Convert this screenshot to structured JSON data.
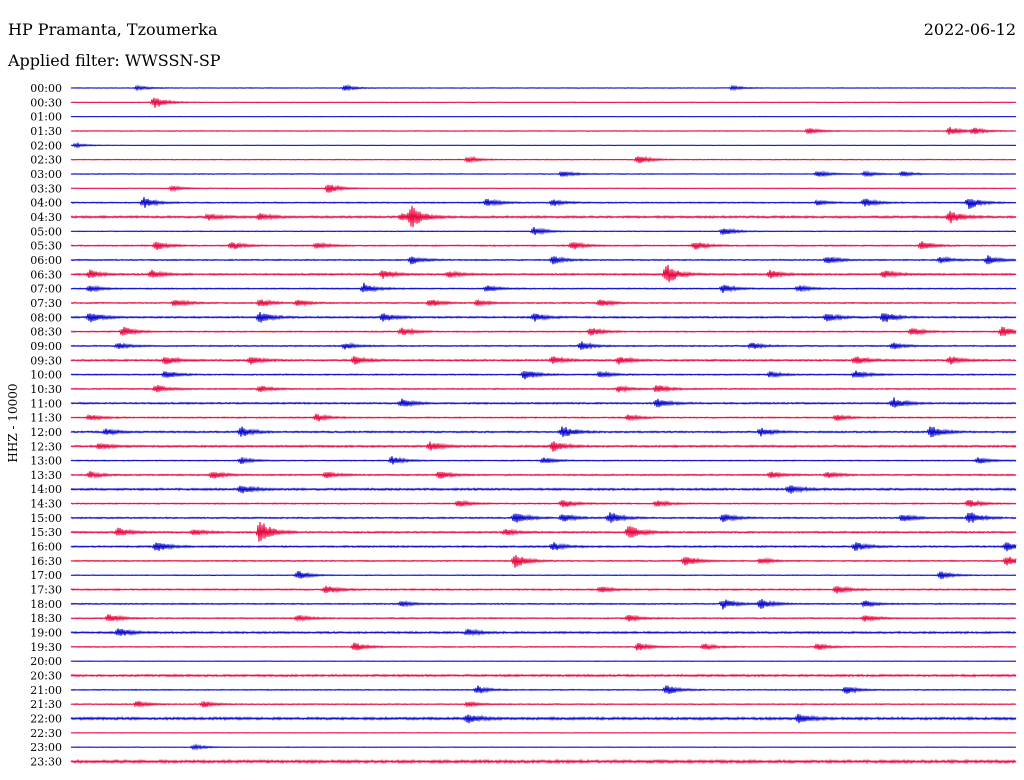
{
  "header": {
    "title": "HP Pramanta, Tzoumerka",
    "date": "2022-06-12",
    "filter": "Applied filter: WWSSN-SP"
  },
  "chart_data": {
    "type": "line",
    "title": "HP Pramanta, Tzoumerka",
    "subtitle": "Applied filter: WWSSN-SP",
    "date": "2022-06-12",
    "ylabel": "HHZ - 10000",
    "xlabel": "",
    "grid": false,
    "colors": {
      "even": "#0000cc",
      "odd": "#e8003a"
    },
    "rows": [
      {
        "label": "00:00",
        "noise": 0.3,
        "events": [
          [
            0.07,
            1
          ],
          [
            0.29,
            1.2
          ],
          [
            0.7,
            1
          ]
        ]
      },
      {
        "label": "00:30",
        "noise": 0.3,
        "events": [
          [
            0.088,
            3
          ]
        ]
      },
      {
        "label": "01:00",
        "noise": 0.2,
        "events": []
      },
      {
        "label": "01:30",
        "noise": 0.4,
        "events": [
          [
            0.78,
            1.5
          ],
          [
            0.93,
            2
          ],
          [
            0.955,
            1.5
          ]
        ]
      },
      {
        "label": "02:00",
        "noise": 0.2,
        "events": [
          [
            0.005,
            1
          ]
        ]
      },
      {
        "label": "02:30",
        "noise": 0.4,
        "events": [
          [
            0.42,
            1.5
          ],
          [
            0.6,
            2
          ]
        ]
      },
      {
        "label": "03:00",
        "noise": 0.4,
        "events": [
          [
            0.52,
            1.5
          ],
          [
            0.79,
            1.5
          ],
          [
            0.84,
            1.2
          ],
          [
            0.88,
            1.2
          ]
        ]
      },
      {
        "label": "03:30",
        "noise": 0.3,
        "events": [
          [
            0.107,
            1.2
          ],
          [
            0.272,
            2.5
          ]
        ]
      },
      {
        "label": "04:00",
        "noise": 0.6,
        "events": [
          [
            0.077,
            2.5
          ],
          [
            0.44,
            2
          ],
          [
            0.51,
            1.5
          ],
          [
            0.79,
            1.2
          ],
          [
            0.84,
            2
          ],
          [
            0.95,
            3
          ]
        ]
      },
      {
        "label": "04:30",
        "noise": 1.0,
        "events": [
          [
            0.36,
            5
          ],
          [
            0.35,
            2
          ],
          [
            0.145,
            1.5
          ],
          [
            0.2,
            1.5
          ],
          [
            0.93,
            3
          ]
        ]
      },
      {
        "label": "05:00",
        "noise": 0.4,
        "events": [
          [
            0.49,
            2
          ],
          [
            0.69,
            2
          ]
        ]
      },
      {
        "label": "05:30",
        "noise": 0.6,
        "events": [
          [
            0.09,
            2
          ],
          [
            0.17,
            2
          ],
          [
            0.26,
            1.5
          ],
          [
            0.53,
            2
          ],
          [
            0.66,
            2
          ],
          [
            0.9,
            2
          ]
        ]
      },
      {
        "label": "06:00",
        "noise": 0.6,
        "events": [
          [
            0.36,
            2
          ],
          [
            0.51,
            2
          ],
          [
            0.8,
            2
          ],
          [
            0.92,
            1.5
          ],
          [
            0.97,
            2
          ]
        ]
      },
      {
        "label": "06:30",
        "noise": 0.8,
        "events": [
          [
            0.63,
            5
          ],
          [
            0.02,
            2
          ],
          [
            0.085,
            2
          ],
          [
            0.33,
            2
          ],
          [
            0.4,
            1.5
          ],
          [
            0.74,
            2
          ],
          [
            0.86,
            2
          ]
        ]
      },
      {
        "label": "07:00",
        "noise": 0.6,
        "events": [
          [
            0.02,
            1.5
          ],
          [
            0.31,
            2.5
          ],
          [
            0.44,
            1.5
          ],
          [
            0.69,
            2
          ],
          [
            0.77,
            1.5
          ]
        ]
      },
      {
        "label": "07:30",
        "noise": 0.6,
        "events": [
          [
            0.11,
            2
          ],
          [
            0.2,
            2
          ],
          [
            0.24,
            1.5
          ],
          [
            0.38,
            2
          ],
          [
            0.43,
            1.5
          ],
          [
            0.56,
            2
          ]
        ]
      },
      {
        "label": "08:00",
        "noise": 0.8,
        "events": [
          [
            0.02,
            2.5
          ],
          [
            0.2,
            2.5
          ],
          [
            0.33,
            2
          ],
          [
            0.49,
            2
          ],
          [
            0.8,
            2
          ],
          [
            0.86,
            2.5
          ]
        ]
      },
      {
        "label": "08:30",
        "noise": 0.6,
        "events": [
          [
            0.055,
            2.5
          ],
          [
            0.35,
            2
          ],
          [
            0.55,
            2
          ],
          [
            0.89,
            2
          ],
          [
            0.985,
            2.5
          ]
        ]
      },
      {
        "label": "09:00",
        "noise": 0.6,
        "events": [
          [
            0.05,
            1.5
          ],
          [
            0.29,
            1.5
          ],
          [
            0.54,
            2
          ],
          [
            0.72,
            1.5
          ],
          [
            0.87,
            1.5
          ]
        ]
      },
      {
        "label": "09:30",
        "noise": 0.8,
        "events": [
          [
            0.1,
            2
          ],
          [
            0.19,
            2
          ],
          [
            0.3,
            2
          ],
          [
            0.51,
            2
          ],
          [
            0.58,
            2
          ],
          [
            0.83,
            2
          ],
          [
            0.93,
            2
          ]
        ]
      },
      {
        "label": "10:00",
        "noise": 0.6,
        "events": [
          [
            0.1,
            2
          ],
          [
            0.48,
            2.5
          ],
          [
            0.56,
            1.5
          ],
          [
            0.74,
            1.5
          ],
          [
            0.83,
            2
          ]
        ]
      },
      {
        "label": "10:30",
        "noise": 0.6,
        "events": [
          [
            0.09,
            2
          ],
          [
            0.2,
            1.5
          ],
          [
            0.58,
            1.5
          ],
          [
            0.62,
            2
          ]
        ]
      },
      {
        "label": "11:00",
        "noise": 0.8,
        "events": [
          [
            0.35,
            2
          ],
          [
            0.62,
            2
          ],
          [
            0.87,
            2.5
          ]
        ]
      },
      {
        "label": "11:30",
        "noise": 0.6,
        "events": [
          [
            0.02,
            1.5
          ],
          [
            0.26,
            2
          ],
          [
            0.59,
            1.5
          ],
          [
            0.81,
            1.5
          ]
        ]
      },
      {
        "label": "12:00",
        "noise": 0.8,
        "events": [
          [
            0.037,
            1.5
          ],
          [
            0.18,
            2.5
          ],
          [
            0.52,
            3
          ],
          [
            0.73,
            2
          ],
          [
            0.91,
            3
          ]
        ]
      },
      {
        "label": "12:30",
        "noise": 0.9,
        "events": [
          [
            0.38,
            2
          ],
          [
            0.51,
            2.5
          ],
          [
            0.03,
            1.5
          ]
        ]
      },
      {
        "label": "13:00",
        "noise": 0.5,
        "events": [
          [
            0.18,
            1.5
          ],
          [
            0.34,
            2
          ],
          [
            0.5,
            1.5
          ],
          [
            0.96,
            1.5
          ]
        ]
      },
      {
        "label": "13:30",
        "noise": 0.7,
        "events": [
          [
            0.02,
            1.5
          ],
          [
            0.15,
            2
          ],
          [
            0.27,
            1.5
          ],
          [
            0.39,
            2
          ],
          [
            0.74,
            1.5
          ],
          [
            0.8,
            1.5
          ]
        ]
      },
      {
        "label": "14:00",
        "noise": 1.0,
        "events": [
          [
            0.18,
            2
          ],
          [
            0.76,
            2
          ]
        ]
      },
      {
        "label": "14:30",
        "noise": 0.6,
        "events": [
          [
            0.41,
            1.5
          ],
          [
            0.52,
            2
          ],
          [
            0.62,
            1.5
          ],
          [
            0.95,
            2
          ]
        ]
      },
      {
        "label": "15:00",
        "noise": 0.7,
        "events": [
          [
            0.47,
            3
          ],
          [
            0.52,
            2
          ],
          [
            0.57,
            3
          ],
          [
            0.69,
            2
          ],
          [
            0.88,
            2
          ],
          [
            0.95,
            3
          ]
        ]
      },
      {
        "label": "15:30",
        "noise": 0.8,
        "events": [
          [
            0.2,
            6
          ],
          [
            0.05,
            2
          ],
          [
            0.59,
            4
          ],
          [
            0.13,
            1.5
          ],
          [
            0.46,
            1.5
          ]
        ]
      },
      {
        "label": "16:00",
        "noise": 0.8,
        "events": [
          [
            0.09,
            2.5
          ],
          [
            0.51,
            2
          ],
          [
            0.83,
            2
          ],
          [
            0.99,
            2
          ]
        ]
      },
      {
        "label": "16:30",
        "noise": 0.6,
        "events": [
          [
            0.47,
            3.5
          ],
          [
            0.65,
            2.5
          ],
          [
            0.73,
            1.5
          ],
          [
            0.99,
            2.5
          ]
        ]
      },
      {
        "label": "17:00",
        "noise": 0.4,
        "events": [
          [
            0.24,
            2
          ],
          [
            0.92,
            2
          ]
        ]
      },
      {
        "label": "17:30",
        "noise": 0.7,
        "events": [
          [
            0.27,
            2
          ],
          [
            0.56,
            1.5
          ],
          [
            0.81,
            2
          ]
        ]
      },
      {
        "label": "18:00",
        "noise": 0.6,
        "events": [
          [
            0.69,
            2.5
          ],
          [
            0.73,
            2.5
          ],
          [
            0.84,
            1.5
          ],
          [
            0.35,
            1.2
          ]
        ]
      },
      {
        "label": "18:30",
        "noise": 0.6,
        "events": [
          [
            0.04,
            2
          ],
          [
            0.24,
            1.5
          ],
          [
            0.59,
            1.5
          ],
          [
            0.84,
            1.5
          ]
        ]
      },
      {
        "label": "19:00",
        "noise": 0.9,
        "events": [
          [
            0.05,
            2
          ],
          [
            0.42,
            1.5
          ]
        ]
      },
      {
        "label": "19:30",
        "noise": 0.5,
        "events": [
          [
            0.3,
            2
          ],
          [
            0.6,
            2
          ],
          [
            0.67,
            1.5
          ],
          [
            0.79,
            1.5
          ]
        ]
      },
      {
        "label": "20:00",
        "noise": 0.3,
        "events": []
      },
      {
        "label": "20:30",
        "noise": 1.0,
        "events": []
      },
      {
        "label": "21:00",
        "noise": 0.5,
        "events": [
          [
            0.43,
            2
          ],
          [
            0.63,
            2.5
          ],
          [
            0.82,
            2
          ]
        ]
      },
      {
        "label": "21:30",
        "noise": 0.5,
        "events": [
          [
            0.07,
            1.5
          ],
          [
            0.14,
            1.5
          ],
          [
            0.42,
            1.2
          ]
        ]
      },
      {
        "label": "22:00",
        "noise": 1.2,
        "events": [
          [
            0.42,
            2
          ],
          [
            0.77,
            2
          ]
        ]
      },
      {
        "label": "22:30",
        "noise": 0.3,
        "events": []
      },
      {
        "label": "23:00",
        "noise": 0.3,
        "events": [
          [
            0.13,
            1.2
          ]
        ]
      },
      {
        "label": "23:30",
        "noise": 1.4,
        "events": []
      }
    ]
  }
}
